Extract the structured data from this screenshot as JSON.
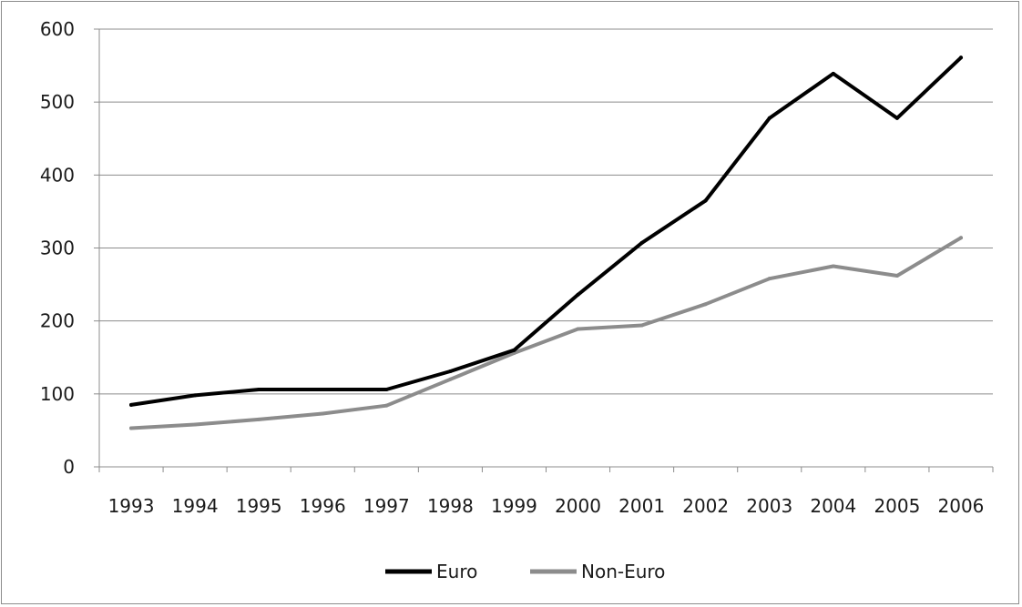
{
  "chart_data": {
    "type": "line",
    "title": "",
    "xlabel": "",
    "ylabel": "",
    "categories": [
      "1993",
      "1994",
      "1995",
      "1996",
      "1997",
      "1998",
      "1999",
      "2000",
      "2001",
      "2002",
      "2003",
      "2004",
      "2005",
      "2006"
    ],
    "ylim": [
      0,
      600
    ],
    "yticks": [
      "0",
      "100",
      "200",
      "300",
      "400",
      "500",
      "600"
    ],
    "grid": "horizontal",
    "legend_position": "bottom",
    "series": [
      {
        "name": "Euro",
        "color": "#000000",
        "values": [
          85,
          98,
          106,
          106,
          106,
          131,
          160,
          236,
          307,
          365,
          478,
          539,
          478,
          561
        ]
      },
      {
        "name": "Non-Euro",
        "color": "#8c8c8c",
        "values": [
          53,
          58,
          65,
          73,
          84,
          120,
          156,
          189,
          194,
          223,
          258,
          275,
          262,
          314
        ]
      }
    ]
  }
}
